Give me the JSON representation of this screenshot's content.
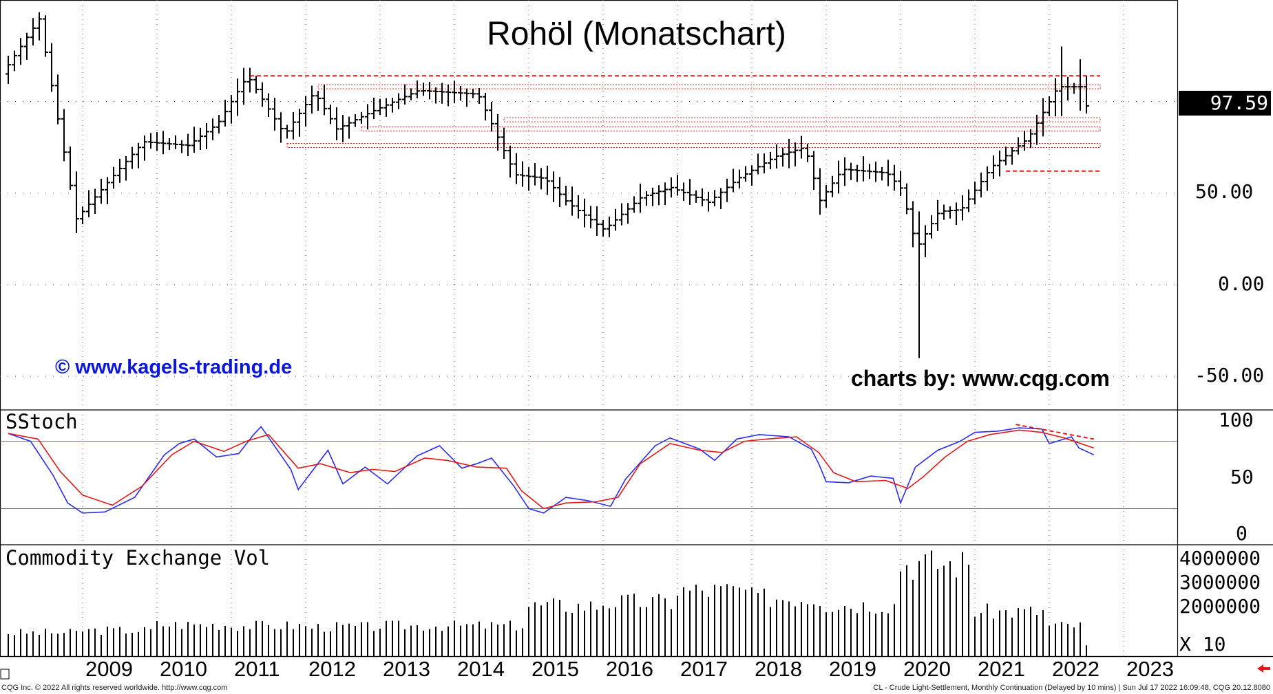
{
  "title": "Rohöl (Monatschart)",
  "watermark_left": "© www.kagels-trading.de",
  "watermark_right": "charts by: www.cqg.com",
  "last_price_label": "97.59",
  "footer_left": "CQG Inc. © 2022 All rights reserved worldwide. http://www.cqg.com",
  "footer_right": "CL - Crude Light-Settlement, Monthly Continuation (Delayed by 10 mins) | Sun Jul 17 2022 16:09:48, CQG 20.12.8080",
  "colors": {
    "bars": "#000000",
    "stoch_fast": "#2a2af0",
    "stoch_slow": "#e01818",
    "resistance": "#e01818",
    "volume": "#000000",
    "watermark": "#0b16d6"
  },
  "chart_data": [
    {
      "type": "ohlc",
      "panel": "price",
      "title": "Rohöl (Monatschart)",
      "y_ticks": [
        "-50.00",
        "0.00",
        "50.00"
      ],
      "ylim": [
        -62,
        152
      ],
      "x_ticks": [
        "2009",
        "2010",
        "2011",
        "2012",
        "2013",
        "2014",
        "2015",
        "2016",
        "2017",
        "2018",
        "2019",
        "2020",
        "2021",
        "2022",
        "2023"
      ],
      "last_price": 97.59,
      "key_points": [
        {
          "x": "2008-07",
          "y": 145
        },
        {
          "x": "2009-01",
          "y": 34
        },
        {
          "x": "2011-04",
          "y": 114
        },
        {
          "x": "2014-06",
          "y": 107
        },
        {
          "x": "2016-02",
          "y": 26
        },
        {
          "x": "2018-10",
          "y": 76
        },
        {
          "x": "2020-04",
          "y": -40
        },
        {
          "x": "2022-03",
          "y": 130
        },
        {
          "x": "2022-07",
          "y": 97.59
        }
      ],
      "levels": [
        {
          "y": 114,
          "style": "dashed",
          "from": "2011-04"
        },
        {
          "y": 108,
          "style": "band",
          "from": "2012-03"
        },
        {
          "y": 90,
          "style": "band",
          "from": "2014-09"
        },
        {
          "y": 85,
          "style": "band",
          "from": "2012-10"
        },
        {
          "y": 76,
          "style": "band",
          "from": "2011-10"
        },
        {
          "y": 62,
          "style": "dashed",
          "from": "2021-06"
        }
      ]
    },
    {
      "type": "line",
      "panel": "indicator",
      "title": "SStoch",
      "y_ticks": [
        "100",
        "50",
        "0"
      ],
      "ylim": [
        0,
        100
      ],
      "series": [
        {
          "name": "",
          "points": [
            [
              2008.0,
              87
            ],
            [
              2008.3,
              80
            ],
            [
              2008.6,
              50
            ],
            [
              2008.8,
              25
            ],
            [
              2009.0,
              16
            ],
            [
              2009.3,
              17
            ],
            [
              2009.7,
              30
            ],
            [
              2010.1,
              68
            ],
            [
              2010.3,
              78
            ],
            [
              2010.5,
              82
            ],
            [
              2010.8,
              66
            ],
            [
              2011.1,
              69
            ],
            [
              2011.3,
              86
            ],
            [
              2011.4,
              93
            ],
            [
              2011.8,
              55
            ],
            [
              2011.9,
              37
            ],
            [
              2012.3,
              72
            ],
            [
              2012.5,
              42
            ],
            [
              2012.8,
              57
            ],
            [
              2013.1,
              42
            ],
            [
              2013.5,
              67
            ],
            [
              2013.8,
              76
            ],
            [
              2014.1,
              56
            ],
            [
              2014.3,
              60
            ],
            [
              2014.5,
              65
            ],
            [
              2014.8,
              40
            ],
            [
              2015.0,
              20
            ],
            [
              2015.2,
              16
            ],
            [
              2015.5,
              30
            ],
            [
              2015.8,
              27
            ],
            [
              2016.1,
              22
            ],
            [
              2016.3,
              46
            ],
            [
              2016.7,
              76
            ],
            [
              2016.9,
              83
            ],
            [
              2017.3,
              73
            ],
            [
              2017.5,
              63
            ],
            [
              2017.8,
              82
            ],
            [
              2018.1,
              86
            ],
            [
              2018.5,
              84
            ],
            [
              2018.8,
              73
            ],
            [
              2018.9,
              60
            ],
            [
              2019.0,
              44
            ],
            [
              2019.3,
              43
            ],
            [
              2019.6,
              49
            ],
            [
              2019.9,
              47
            ],
            [
              2020.0,
              25
            ],
            [
              2020.2,
              57
            ],
            [
              2020.5,
              72
            ],
            [
              2020.8,
              80
            ],
            [
              2021.0,
              88
            ],
            [
              2021.3,
              89
            ],
            [
              2021.6,
              92
            ],
            [
              2021.9,
              91
            ],
            [
              2022.0,
              78
            ],
            [
              2022.3,
              84
            ],
            [
              2022.4,
              74
            ],
            [
              2022.6,
              68
            ]
          ]
        },
        {
          "name": "",
          "points": [
            [
              2008.0,
              87
            ],
            [
              2008.4,
              82
            ],
            [
              2008.7,
              53
            ],
            [
              2009.0,
              32
            ],
            [
              2009.4,
              23
            ],
            [
              2009.8,
              40
            ],
            [
              2010.2,
              68
            ],
            [
              2010.5,
              80
            ],
            [
              2010.9,
              71
            ],
            [
              2011.2,
              80
            ],
            [
              2011.5,
              86
            ],
            [
              2011.9,
              56
            ],
            [
              2012.2,
              60
            ],
            [
              2012.6,
              52
            ],
            [
              2012.9,
              55
            ],
            [
              2013.2,
              53
            ],
            [
              2013.6,
              65
            ],
            [
              2013.9,
              63
            ],
            [
              2014.3,
              57
            ],
            [
              2014.7,
              56
            ],
            [
              2014.9,
              36
            ],
            [
              2015.2,
              20
            ],
            [
              2015.5,
              25
            ],
            [
              2015.9,
              26
            ],
            [
              2016.2,
              30
            ],
            [
              2016.5,
              60
            ],
            [
              2016.9,
              78
            ],
            [
              2017.3,
              72
            ],
            [
              2017.6,
              70
            ],
            [
              2017.9,
              80
            ],
            [
              2018.2,
              82
            ],
            [
              2018.6,
              84
            ],
            [
              2018.9,
              70
            ],
            [
              2019.1,
              52
            ],
            [
              2019.4,
              44
            ],
            [
              2019.8,
              45
            ],
            [
              2020.1,
              38
            ],
            [
              2020.3,
              48
            ],
            [
              2020.6,
              66
            ],
            [
              2020.9,
              80
            ],
            [
              2021.2,
              86
            ],
            [
              2021.6,
              90
            ],
            [
              2021.9,
              88
            ],
            [
              2022.2,
              83
            ],
            [
              2022.6,
              74
            ]
          ]
        }
      ],
      "trend_annotations": [
        {
          "from": [
            2021.55,
            95
          ],
          "to": [
            2022.6,
            82
          ]
        }
      ]
    },
    {
      "type": "bar",
      "panel": "volume",
      "title": "Commodity Exchange Vol",
      "y_ticks": [
        "4000000",
        "3000000",
        "2000000"
      ],
      "unit_label": "X 10",
      "ylim": [
        0,
        4000000
      ],
      "values_by_year": [
        {
          "x": "2008",
          "value": 1000000
        },
        {
          "x": "2009",
          "value": 1100000
        },
        {
          "x": "2010",
          "value": 1350000
        },
        {
          "x": "2011",
          "value": 1300000
        },
        {
          "x": "2012",
          "value": 1250000
        },
        {
          "x": "2013",
          "value": 1300000
        },
        {
          "x": "2014",
          "value": 1300000
        },
        {
          "x": "2015",
          "value": 2150000
        },
        {
          "x": "2016",
          "value": 2300000
        },
        {
          "x": "2017",
          "value": 2800000
        },
        {
          "x": "2018",
          "value": 2500000
        },
        {
          "x": "2019",
          "value": 2200000
        },
        {
          "x": "2020",
          "value": 3950000
        },
        {
          "x": "2021",
          "value": 1900000
        },
        {
          "x": "2022",
          "value": 1300000
        }
      ]
    }
  ]
}
